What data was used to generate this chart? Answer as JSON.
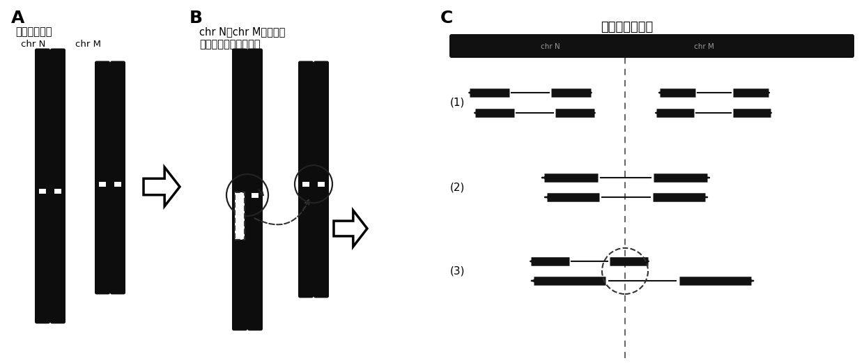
{
  "panel_A_title": "成对的染色体",
  "panel_A_label1": "chr N",
  "panel_A_label2": "chr M",
  "panel_B_line1": "chr N和chr M的某一条",
  "panel_B_line2": "染色体之间发生了易位",
  "panel_C_title": "染色体易位断点",
  "label_1": "(1)",
  "label_2": "(2)",
  "label_3": "(3)",
  "chr_color": "#0d0d0d",
  "text_color": "#000000",
  "bg_color": "#ffffff",
  "label_fontsize": 18,
  "title_fontsize": 11,
  "C_title_fontsize": 13
}
